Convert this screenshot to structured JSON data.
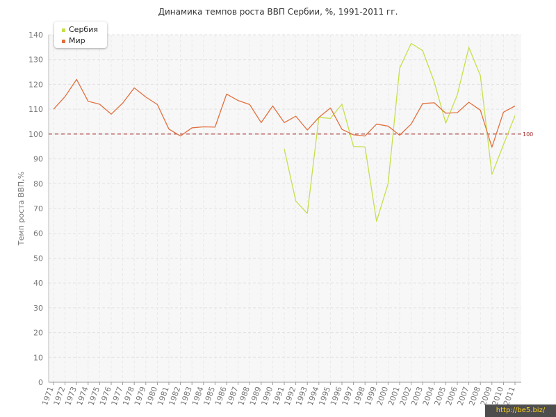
{
  "chart_data": {
    "type": "line",
    "title": "Динамика темпов роста ВВП Сербии, %, 1991-2011 гг.",
    "ylabel": "Темп роста ВВП,%",
    "xlabel": "",
    "ylim": [
      0,
      140
    ],
    "yticks": [
      0,
      10,
      20,
      30,
      40,
      50,
      60,
      70,
      80,
      90,
      100,
      110,
      120,
      130,
      140
    ],
    "categories": [
      "1971",
      "1972",
      "1973",
      "1974",
      "1975",
      "1976",
      "1977",
      "1978",
      "1979",
      "1980",
      "1981",
      "1982",
      "1983",
      "1984",
      "1985",
      "1986",
      "1987",
      "1988",
      "1989",
      "1990",
      "1991",
      "1992",
      "1993",
      "1994",
      "1995",
      "1996",
      "1997",
      "1998",
      "1999",
      "2000",
      "2001",
      "2002",
      "2003",
      "2004",
      "2005",
      "2006",
      "2007",
      "2008",
      "2009",
      "2010",
      "2011"
    ],
    "grid": true,
    "legend_position": "top-left",
    "reference_line": {
      "value": 100,
      "label": "100",
      "color": "#a52a2a"
    },
    "series": [
      {
        "name": "Сербия",
        "color": "#c5e04a",
        "values": [
          null,
          null,
          null,
          null,
          null,
          null,
          null,
          null,
          null,
          null,
          null,
          null,
          null,
          null,
          null,
          null,
          null,
          null,
          null,
          null,
          94,
          73,
          68,
          106.7,
          106.3,
          112,
          95,
          94.8,
          64.8,
          80,
          126.5,
          136.5,
          133.6,
          121,
          104.4,
          115.8,
          134.9,
          123.5,
          83.7,
          95.7,
          107.4
        ]
      },
      {
        "name": "Мир",
        "color": "#e36f3d",
        "values": [
          110,
          115.1,
          122,
          113.2,
          112,
          108,
          112.5,
          118.6,
          114.9,
          111.9,
          102,
          99.2,
          102.5,
          102.9,
          102.8,
          116.1,
          113.5,
          111.9,
          104.6,
          111.3,
          104.6,
          107.2,
          101.6,
          106.7,
          110.5,
          101.9,
          99.7,
          99.2,
          104,
          103.2,
          99.5,
          104,
          112.3,
          112.6,
          108.4,
          108.6,
          112.8,
          109.6,
          94.7,
          108.8,
          111.3
        ]
      }
    ]
  },
  "watermark": "http://be5.biz/"
}
